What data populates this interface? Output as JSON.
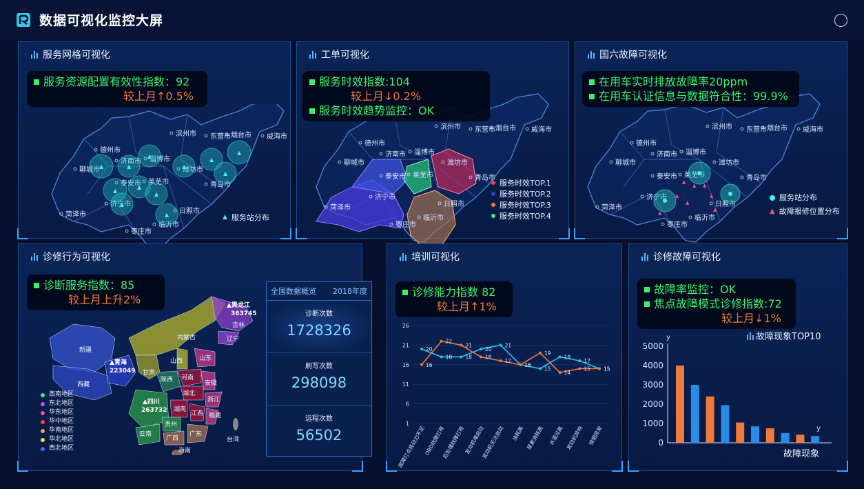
{
  "header": {
    "title": "数据可视化监控大屏"
  },
  "panels": {
    "service_grid": {
      "title": "服务网格可视化",
      "kpi_line1": "服务资源配置有效性指数：92",
      "kpi_line2": "较上月↑0.5%",
      "legend": "服务站分布"
    },
    "work_order": {
      "title": "工单可视化",
      "kpi_line1": "服务时效指数:104",
      "kpi_line2": "较上月↓0.2%",
      "kpi_line3": "服务时效趋势监控：OK",
      "legend": [
        "服务时效TOP.1",
        "服务时效TOP.2",
        "服务时效TOP.3",
        "服务时效TOP.4"
      ],
      "legend_colors": [
        "#f0404e",
        "#3a3ee0",
        "#f07a3a",
        "#3cf06e"
      ]
    },
    "national6": {
      "title": "国六故障可视化",
      "kpi_line1": "在用车实时排放故障率20ppm",
      "kpi_line2": "在用车认证信息与数据符合性：99.9%",
      "legend": [
        "服务站分布",
        "故障报修位置分布"
      ]
    },
    "diagnosis": {
      "title": "诊修行为可视化",
      "kpi_line1": "诊断服务指数：85",
      "kpi_line2": "较上月上升2%",
      "legend": [
        "西南地区",
        "东北地区",
        "华东地区",
        "华中地区",
        "华南地区",
        "华北地区",
        "西北地区"
      ],
      "legend_colors": [
        "#3cf06e",
        "#c04cff",
        "#ff4ca8",
        "#ff3a3a",
        "#f0a040",
        "#f0e040",
        "#3a6cff"
      ],
      "map_labels": {
        "heilongjiang": "▲黑龙江",
        "heilongjiang_v": "363745",
        "qinghai": "▲青海",
        "qinghai_v": "223049",
        "sichuan": "▲四川",
        "sichuan_v": "263732"
      }
    },
    "overview": {
      "title": "全国数据概览",
      "year": "2018年度",
      "stats": [
        {
          "label": "诊断次数",
          "value": "1728326"
        },
        {
          "label": "刷写次数",
          "value": "298098"
        },
        {
          "label": "远程次数",
          "value": "56502"
        }
      ]
    },
    "training": {
      "title": "培训可视化",
      "kpi_line1": "诊修能力指数 82",
      "kpi_line2": "较上月↑1%"
    },
    "repair_fault": {
      "title": "诊修故障可视化",
      "kpi_line1": "故障率监控：OK",
      "kpi_line2": "焦点故障模式诊修指数:72",
      "kpi_line3": "较上月↓1%",
      "chart_title": "故障现象TOP10"
    }
  },
  "cities": [
    "烟台市",
    "威海市",
    "德州市",
    "滨州市",
    "东营市",
    "济南市",
    "淄博市",
    "潍坊市",
    "聊城市",
    "泰安市",
    "莱芜市",
    "青岛市",
    "济宁市",
    "日照市",
    "菏泽市",
    "临沂市",
    "枣庄市"
  ],
  "china_provinces": [
    "新疆",
    "西藏",
    "内蒙古",
    "吉林",
    "辽宁",
    "甘肃",
    "山西",
    "山东",
    "河南",
    "陕西",
    "安徽",
    "湖北",
    "浙江",
    "湖南",
    "江西",
    "福建",
    "云南",
    "贵州",
    "广西",
    "广东",
    "台湾",
    "海南"
  ],
  "chart_data": [
    {
      "type": "line",
      "categories": [
        "故障灯点亮动力不足",
        "OBD故障灯亮",
        "后处理故障灯亮",
        "发动机难启动",
        "发动机无法启动",
        "油耗高",
        "尿素消耗高",
        "水温过高",
        "发动机异响",
        "排烟异常"
      ],
      "series": [
        {
          "values": [
            20,
            18,
            18,
            20,
            21,
            16,
            15,
            18,
            17,
            15
          ],
          "color": "#26c6f0"
        },
        {
          "values": [
            16,
            22,
            21,
            18,
            17,
            16,
            19,
            14,
            15,
            15
          ],
          "color": "#f07a3a"
        }
      ],
      "ylim": [
        1,
        26
      ],
      "yticks": [
        1,
        6,
        11,
        16,
        21,
        26
      ]
    },
    {
      "type": "bar",
      "title": "故障现象TOP10",
      "xlabel": "故障现象",
      "ylabel": "y",
      "ylim": [
        0,
        5000
      ],
      "yticks": [
        0,
        1000,
        2000,
        3000,
        4000,
        5000
      ],
      "values": [
        4000,
        3000,
        2400,
        1950,
        1050,
        850,
        750,
        500,
        420,
        350
      ],
      "colors": [
        "#f07a3a",
        "#2a8ce6",
        "#f07a3a",
        "#2a8ce6",
        "#f07a3a",
        "#2a8ce6",
        "#f07a3a",
        "#2a8ce6",
        "#f07a3a",
        "#2a8ce6"
      ]
    }
  ]
}
